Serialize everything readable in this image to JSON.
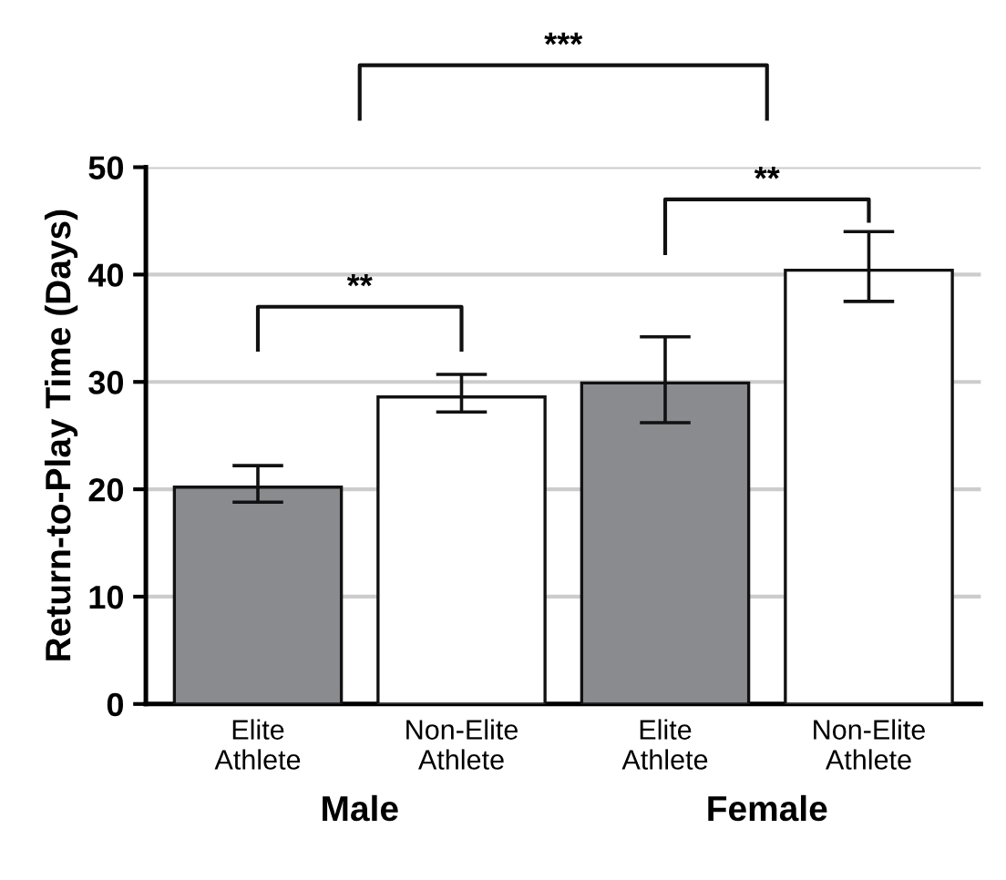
{
  "chart_data": {
    "type": "bar",
    "ylabel": "Return-to-Play Time (Days)",
    "categories": [
      "Elite\nAthlete",
      "Non-Elite\nAthlete",
      "Elite\nAthlete",
      "Non-Elite\nAthlete"
    ],
    "values": [
      20.2,
      28.6,
      29.9,
      40.4
    ],
    "errors": [
      [
        18.8,
        22.2
      ],
      [
        27.2,
        30.7
      ],
      [
        26.2,
        34.2
      ],
      [
        37.5,
        44.0
      ]
    ],
    "colors": [
      "#8a8b8e",
      "#ffffff",
      "#8a8b8e",
      "#ffffff"
    ],
    "ylim": [
      0,
      50
    ],
    "yticks": [
      0,
      10,
      20,
      30,
      40,
      50
    ],
    "grid": "y",
    "legend": false,
    "annotations": [
      "**",
      "**",
      "***",
      "Male",
      "Female"
    ]
  }
}
